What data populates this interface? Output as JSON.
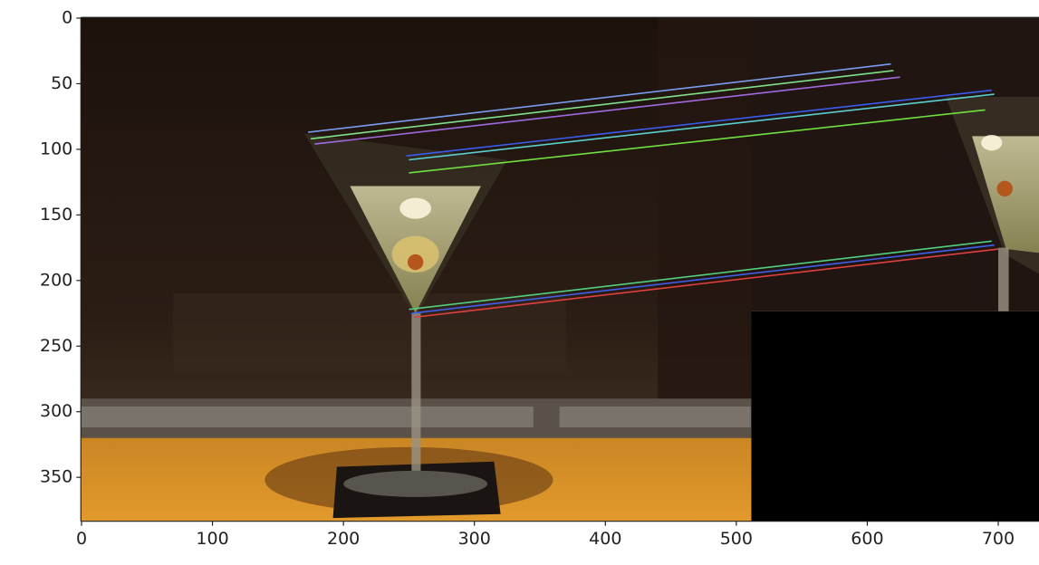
{
  "chart_data": {
    "type": "image",
    "xlim": [
      -0.5,
      735.5
    ],
    "ylim": [
      383.5,
      -0.5
    ],
    "xticks": [
      0,
      100,
      200,
      300,
      400,
      500,
      600,
      700
    ],
    "yticks": [
      0,
      50,
      100,
      150,
      200,
      250,
      300,
      350
    ]
  }
}
